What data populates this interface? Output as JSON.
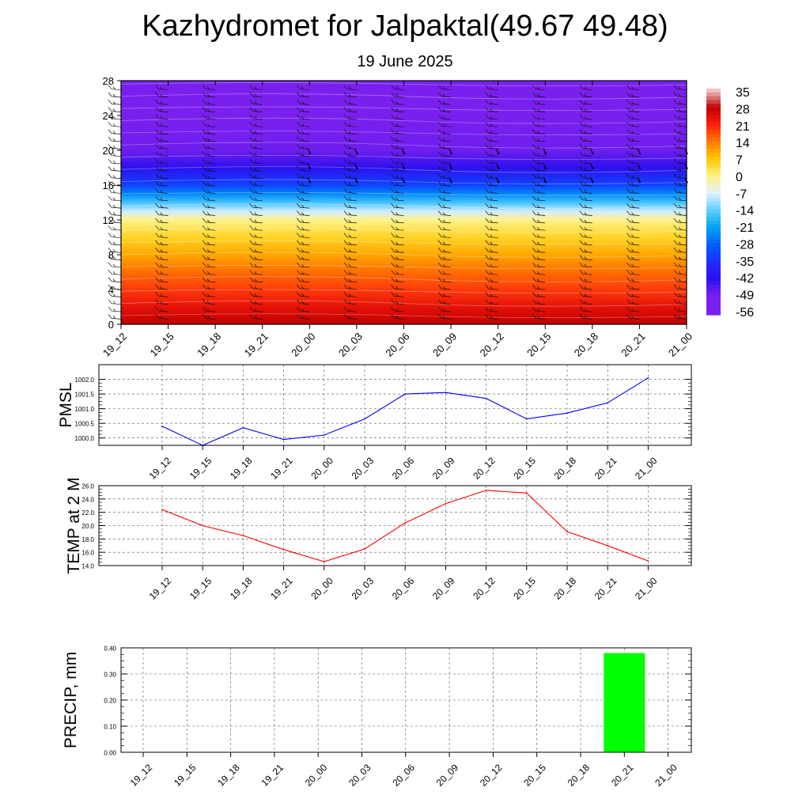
{
  "title": "Kazhydromet for Jalpaktal(49.67 49.48)",
  "subtitle": "19 June 2025",
  "chart_data": [
    {
      "type": "heatmap",
      "name": "Vertical cross-section (temperature contours with wind barbs)",
      "x_labels": [
        "19_12",
        "19_15",
        "19_18",
        "19_21",
        "20_00",
        "20_03",
        "20_06",
        "20_09",
        "20_12",
        "20_15",
        "20_18",
        "20_21",
        "21_00"
      ],
      "yticks": [
        0,
        4,
        8,
        12,
        16,
        20,
        24,
        28
      ],
      "ylim": [
        0,
        28
      ],
      "colorbar_labels": [
        "35",
        "28",
        "21",
        "14",
        "7",
        "0",
        "-7",
        "-14",
        "-21",
        "-28",
        "-35",
        "-42",
        "-49",
        "-56"
      ],
      "colorbar_colors": [
        "#f2c2c2",
        "#c00000",
        "#ff2010",
        "#ff7a00",
        "#ffc800",
        "#fff28a",
        "#e2f1ff",
        "#5ed0ff",
        "#00a4f0",
        "#0060ff",
        "#1f2eff",
        "#2d10ee",
        "#7a20ee"
      ],
      "temperature_profile": [
        {
          "level": 0,
          "value": 28
        },
        {
          "level": 2,
          "value": 24
        },
        {
          "level": 4,
          "value": 19
        },
        {
          "level": 6,
          "value": 15
        },
        {
          "level": 8,
          "value": 10
        },
        {
          "level": 10,
          "value": 5
        },
        {
          "level": 12,
          "value": 0
        },
        {
          "level": 13,
          "value": -8
        },
        {
          "level": 14,
          "value": -16
        },
        {
          "level": 15,
          "value": -24
        },
        {
          "level": 16,
          "value": -32
        },
        {
          "level": 18,
          "value": -42
        },
        {
          "level": 20,
          "value": -48
        },
        {
          "level": 24,
          "value": -54
        },
        {
          "level": 28,
          "value": -56
        }
      ],
      "grid": true
    },
    {
      "type": "line",
      "ylabel": "PMSL",
      "categories": [
        "19_12",
        "19_15",
        "19_18",
        "19_21",
        "20_00",
        "20_03",
        "20_06",
        "20_09",
        "20_12",
        "20_15",
        "20_18",
        "20_21",
        "21_00"
      ],
      "series": [
        {
          "color": "#0000ff",
          "values": [
            1000.4,
            999.75,
            1000.35,
            999.95,
            1000.1,
            1000.65,
            1001.5,
            1001.55,
            1001.35,
            1000.65,
            1000.85,
            1001.2,
            1002.05
          ]
        }
      ],
      "yticks": [
        "1000.0",
        "1000.5",
        "1001.0",
        "1001.5",
        "1002.0"
      ],
      "ylim": [
        999.75,
        1002.5
      ],
      "grid": true
    },
    {
      "type": "line",
      "ylabel": "TEMP at 2 M",
      "categories": [
        "19_12",
        "19_15",
        "19_18",
        "19_21",
        "20_00",
        "20_03",
        "20_06",
        "20_09",
        "20_12",
        "20_15",
        "20_18",
        "20_21",
        "21_00"
      ],
      "series": [
        {
          "color": "#ff0000",
          "values": [
            22.4,
            20.0,
            18.5,
            16.4,
            14.6,
            16.5,
            20.4,
            23.3,
            25.3,
            24.9,
            19.1,
            17.0,
            14.7
          ]
        }
      ],
      "yticks": [
        "14.0",
        "16.0",
        "18.0",
        "20.0",
        "22.0",
        "24.0",
        "26.0"
      ],
      "ylim": [
        14,
        26
      ],
      "grid": true
    },
    {
      "type": "bar",
      "ylabel": "PRECIP, mm",
      "categories": [
        "19_12",
        "19_15",
        "19_18",
        "19_21",
        "20_00",
        "20_03",
        "20_06",
        "20_09",
        "20_12",
        "20_15",
        "20_18",
        "20_21",
        "21_00"
      ],
      "values": [
        0,
        0,
        0,
        0,
        0,
        0,
        0,
        0,
        0,
        0,
        0,
        0.38,
        0
      ],
      "color": "#00ff00",
      "yticks": [
        "0.00",
        "0.10",
        "0.20",
        "0.30",
        "0.40"
      ],
      "ylim": [
        0,
        0.4
      ],
      "grid": true
    }
  ]
}
